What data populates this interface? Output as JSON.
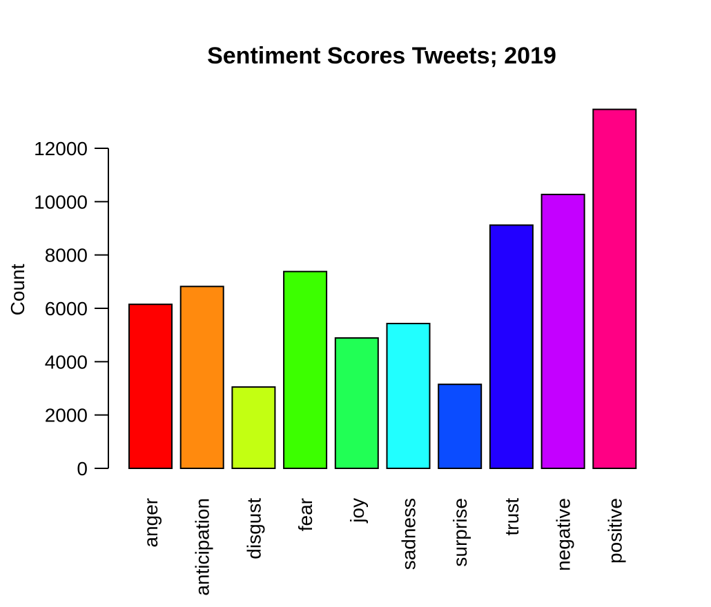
{
  "chart_data": {
    "type": "bar",
    "title": "Sentiment Scores Tweets; 2019",
    "xlabel": "",
    "ylabel": "Count",
    "ylim": [
      0,
      13500
    ],
    "yticks": [
      0,
      2000,
      4000,
      6000,
      8000,
      10000,
      12000
    ],
    "grid": false,
    "categories": [
      "anger",
      "anticipation",
      "disgust",
      "fear",
      "joy",
      "sadness",
      "surprise",
      "trust",
      "negative",
      "positive"
    ],
    "values": [
      6150,
      6820,
      3050,
      7380,
      4890,
      5430,
      3150,
      9120,
      10270,
      13460
    ],
    "colors": [
      "#ff0000",
      "#ff8a0e",
      "#c3ff12",
      "#3cff00",
      "#21ff55",
      "#21ffff",
      "#0b4cff",
      "#2200ff",
      "#c400ff",
      "#ff0084"
    ]
  }
}
